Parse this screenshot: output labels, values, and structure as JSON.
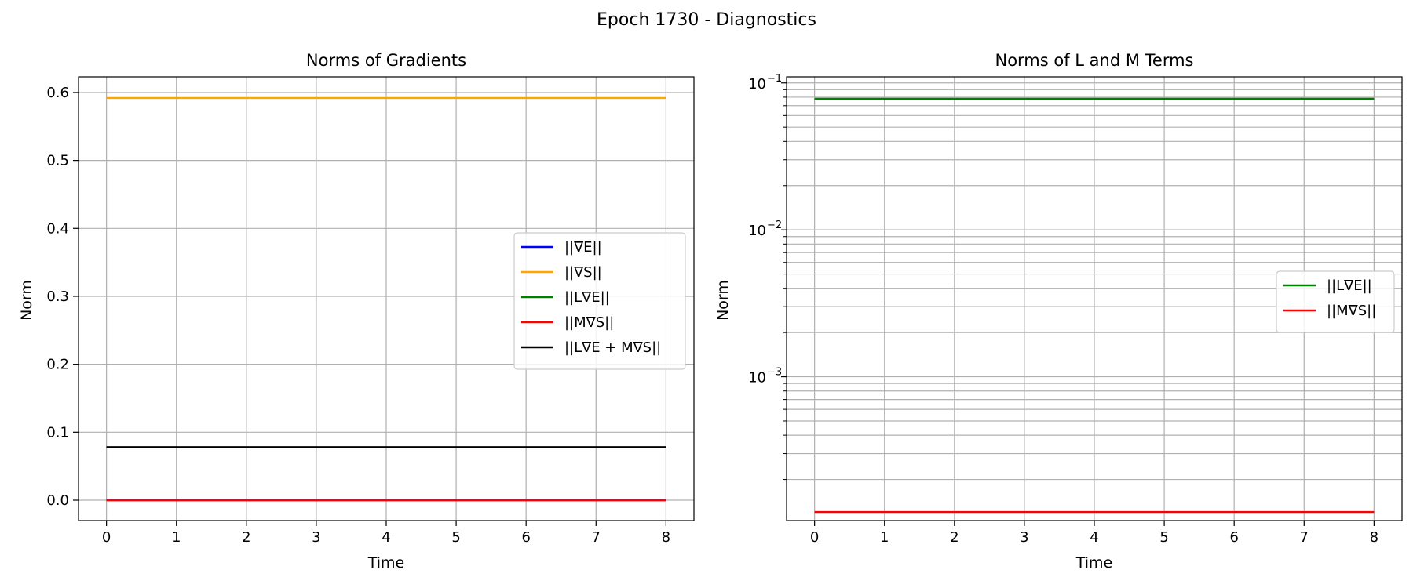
{
  "figure": {
    "title": "Epoch 1730 - Diagnostics"
  },
  "chart_data": [
    {
      "type": "line",
      "title": "Norms of Gradients",
      "xlabel": "Time",
      "ylabel": "Norm",
      "xlim": [
        -0.4,
        8.4
      ],
      "ylim": [
        -0.03,
        0.623
      ],
      "xticks": [
        0,
        1,
        2,
        3,
        4,
        5,
        6,
        7,
        8
      ],
      "xtick_labels": [
        "0",
        "1",
        "2",
        "3",
        "4",
        "5",
        "6",
        "7",
        "8"
      ],
      "yticks": [
        0.0,
        0.1,
        0.2,
        0.3,
        0.4,
        0.5,
        0.6
      ],
      "ytick_labels": [
        "0.0",
        "0.1",
        "0.2",
        "0.3",
        "0.4",
        "0.5",
        "0.6"
      ],
      "yscale": "linear",
      "grid": true,
      "legend_position": "center-right",
      "x": [
        0,
        1,
        2,
        3,
        4,
        5,
        6,
        7,
        8
      ],
      "series": [
        {
          "name": "||∇E||",
          "color": "#0000ff",
          "values": [
            0.0,
            0.0,
            0.0,
            0.0,
            0.0,
            0.0,
            0.0,
            0.0,
            0.0
          ]
        },
        {
          "name": "||∇S||",
          "color": "#ffa500",
          "values": [
            0.592,
            0.592,
            0.592,
            0.592,
            0.592,
            0.592,
            0.592,
            0.592,
            0.592
          ]
        },
        {
          "name": "||L∇E||",
          "color": "#008000",
          "values": [
            0.078,
            0.078,
            0.078,
            0.078,
            0.078,
            0.078,
            0.078,
            0.078,
            0.078
          ]
        },
        {
          "name": "||M∇S||",
          "color": "#ff0000",
          "values": [
            0.0001,
            0.0001,
            0.0001,
            0.0001,
            0.0001,
            0.0001,
            0.0001,
            0.0001,
            0.0001
          ]
        },
        {
          "name": "||L∇E + M∇S||",
          "color": "#000000",
          "values": [
            0.078,
            0.078,
            0.078,
            0.078,
            0.078,
            0.078,
            0.078,
            0.078,
            0.078
          ]
        }
      ],
      "draw_order": [
        1,
        2,
        4,
        0,
        3
      ]
    },
    {
      "type": "line",
      "title": "Norms of L and M Terms",
      "xlabel": "Time",
      "ylabel": "Norm",
      "xlim": [
        -0.4,
        8.4
      ],
      "ylim": [
        0.000105,
        0.11
      ],
      "xticks": [
        0,
        1,
        2,
        3,
        4,
        5,
        6,
        7,
        8
      ],
      "xtick_labels": [
        "0",
        "1",
        "2",
        "3",
        "4",
        "5",
        "6",
        "7",
        "8"
      ],
      "yscale": "log",
      "yticks": [
        0.001,
        0.01,
        0.1
      ],
      "ytick_labels": [
        {
          "base": "10",
          "exp": "−3"
        },
        {
          "base": "10",
          "exp": "−2"
        },
        {
          "base": "10",
          "exp": "−1"
        }
      ],
      "grid": true,
      "legend_position": "center-right",
      "x": [
        0,
        1,
        2,
        3,
        4,
        5,
        6,
        7,
        8
      ],
      "series": [
        {
          "name": "||L∇E||",
          "color": "#008000",
          "values": [
            0.078,
            0.078,
            0.078,
            0.078,
            0.078,
            0.078,
            0.078,
            0.078,
            0.078
          ]
        },
        {
          "name": "||M∇S||",
          "color": "#ff0000",
          "values": [
            0.00012,
            0.00012,
            0.00012,
            0.00012,
            0.00012,
            0.00012,
            0.00012,
            0.00012,
            0.00012
          ]
        }
      ],
      "draw_order": [
        0,
        1
      ]
    }
  ]
}
